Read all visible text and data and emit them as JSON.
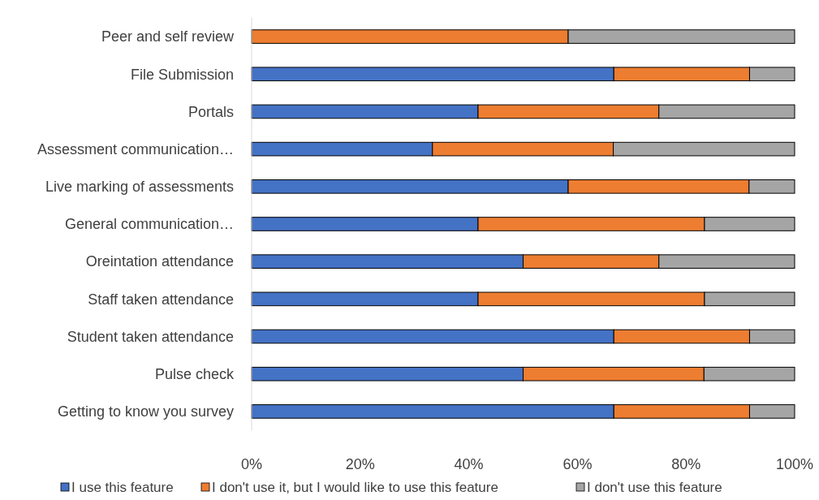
{
  "chart_data": {
    "type": "bar",
    "orientation": "horizontal",
    "stacked": true,
    "legend": "bottom",
    "categories": [
      "Peer and self review",
      "File Submission",
      "Portals",
      "Assessment communication…",
      "Live marking of assessments",
      "General communication…",
      "Oreintation attendance",
      "Staff taken attendance",
      "Student taken attendance",
      "Pulse check",
      "Getting to know you survey"
    ],
    "series": [
      {
        "name": "I use this feature",
        "color": "#4472c4",
        "values": [
          0,
          66.7,
          41.7,
          33.3,
          58.3,
          41.7,
          50,
          41.7,
          66.7,
          50,
          66.7
        ]
      },
      {
        "name": "I don't use it, but I would like to use this feature",
        "color": "#ed7d31",
        "values": [
          58.3,
          25,
          33.3,
          33.3,
          33.3,
          41.7,
          25,
          41.7,
          25,
          33.3,
          25
        ]
      },
      {
        "name": "I don't use this feature",
        "color": "#a5a5a5",
        "values": [
          41.7,
          8.3,
          25,
          33.4,
          8.4,
          16.6,
          25,
          16.6,
          8.3,
          16.7,
          8.3
        ]
      }
    ],
    "xlim": [
      0,
      100
    ],
    "xticks": [
      {
        "value": 0,
        "label": "0%"
      },
      {
        "value": 20,
        "label": "20%"
      },
      {
        "value": 40,
        "label": "40%"
      },
      {
        "value": 60,
        "label": "60%"
      },
      {
        "value": 80,
        "label": "80%"
      },
      {
        "value": 100,
        "label": "100%"
      }
    ]
  }
}
